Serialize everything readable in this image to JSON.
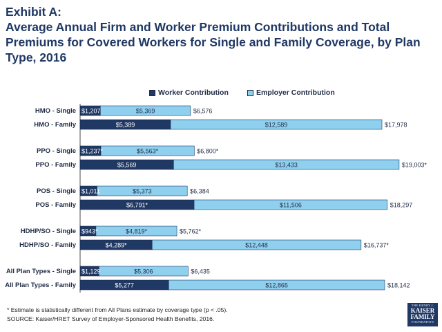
{
  "header": {
    "exhibit": "Exhibit A:",
    "title": "Average Annual Firm and Worker Premium Contributions and Total Premiums for Covered Workers for Single and Family Coverage, by Plan Type, 2016"
  },
  "colors": {
    "worker": "#1f3864",
    "employer": "#8fd0ef",
    "label": "#1f2a44"
  },
  "chart_data": {
    "type": "bar",
    "orientation": "horizontal",
    "stacked": true,
    "xlim": [
      0,
      19500
    ],
    "legend_position": "top",
    "series": [
      {
        "name": "Worker Contribution",
        "values": [
          1207,
          5389,
          1237,
          5569,
          1011,
          6791,
          943,
          4289,
          1129,
          5277
        ]
      },
      {
        "name": "Employer Contribution",
        "values": [
          5369,
          12589,
          5563,
          13433,
          5373,
          11506,
          4819,
          12448,
          5306,
          12865
        ]
      }
    ],
    "totals": [
      6576,
      17978,
      6800,
      19003,
      6384,
      18297,
      5762,
      16737,
      6435,
      18142
    ],
    "rows": [
      {
        "category": "HMO - Single",
        "worker_label": "$1,207",
        "employer_label": "$5,369",
        "total_label": "$6,576"
      },
      {
        "category": "HMO - Family",
        "worker_label": "$5,389",
        "employer_label": "$12,589",
        "total_label": "$17,978"
      },
      {
        "category": "PPO - Single",
        "worker_label": "$1,237*",
        "employer_label": "$5,563*",
        "total_label": "$6,800*"
      },
      {
        "category": "PPO - Family",
        "worker_label": "$5,569",
        "employer_label": "$13,433",
        "total_label": "$19,003*"
      },
      {
        "category": "POS - Single",
        "worker_label": "$1,011",
        "employer_label": "$5,373",
        "total_label": "$6,384"
      },
      {
        "category": "POS - Family",
        "worker_label": "$6,791*",
        "employer_label": "$11,506",
        "total_label": "$18,297"
      },
      {
        "category": "HDHP/SO - Single",
        "worker_label": "$943*",
        "employer_label": "$4,819*",
        "total_label": "$5,762*"
      },
      {
        "category": "HDHP/SO - Family",
        "worker_label": "$4,289*",
        "employer_label": "$12,448",
        "total_label": "$16,737*"
      },
      {
        "category": "All Plan Types - Single",
        "worker_label": "$1,129",
        "employer_label": "$5,306",
        "total_label": "$6,435"
      },
      {
        "category": "All Plan Types - Family",
        "worker_label": "$5,277",
        "employer_label": "$12,865",
        "total_label": "$18,142"
      }
    ]
  },
  "footnotes": {
    "note": "* Estimate is statistically different from All Plans estimate by coverage type (p < .05).",
    "source": "SOURCE:  Kaiser/HRET Survey of Employer-Sponsored Health Benefits, 2016."
  },
  "logo": {
    "line1": "THE HENRY J.",
    "line2": "KAISER",
    "line3": "FAMILY",
    "line4": "FOUNDATION"
  }
}
